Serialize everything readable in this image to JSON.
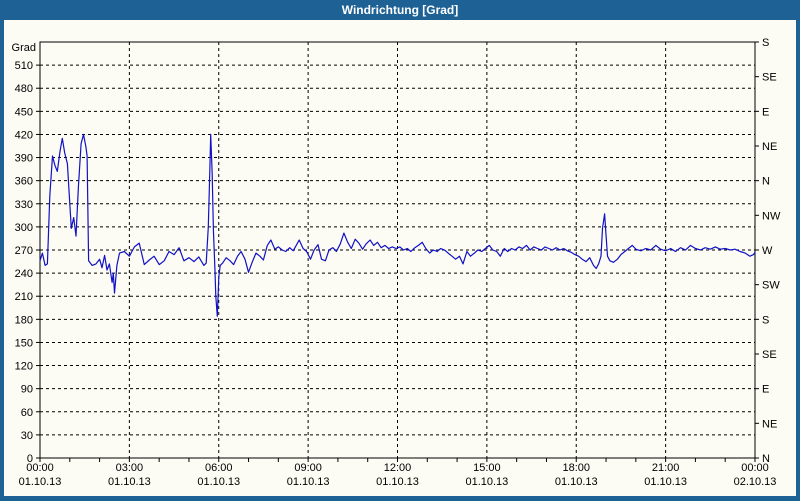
{
  "window": {
    "title": "Windrichtung [Grad]"
  },
  "colors": {
    "frame": "#1E6295",
    "titlebar_text": "#FFFFFF",
    "panel_bg": "#FCFCF4",
    "axis": "#000000",
    "line": "#1111C6"
  },
  "chart_data": {
    "type": "line",
    "title": "Windrichtung [Grad]",
    "ylabel": "Grad",
    "ylim": [
      0,
      540
    ],
    "xlim_hours": [
      0,
      24
    ],
    "grid": {
      "style": "dashed",
      "y_step": 30,
      "x_step_hours": 3
    },
    "y_left_ticks": [
      0,
      30,
      60,
      90,
      120,
      150,
      180,
      210,
      240,
      270,
      300,
      330,
      360,
      390,
      420,
      450,
      480,
      510
    ],
    "y_right_ticks": [
      {
        "value": 540,
        "label": "S"
      },
      {
        "value": 495,
        "label": "SE"
      },
      {
        "value": 450,
        "label": "E"
      },
      {
        "value": 405,
        "label": "NE"
      },
      {
        "value": 360,
        "label": "N"
      },
      {
        "value": 315,
        "label": "NW"
      },
      {
        "value": 270,
        "label": "W"
      },
      {
        "value": 225,
        "label": "SW"
      },
      {
        "value": 180,
        "label": "S"
      },
      {
        "value": 135,
        "label": "SE"
      },
      {
        "value": 90,
        "label": "E"
      },
      {
        "value": 45,
        "label": "NE"
      },
      {
        "value": 0,
        "label": "N"
      }
    ],
    "x_major_ticks": [
      {
        "hour": 0,
        "time": "00:00",
        "date": "01.10.13"
      },
      {
        "hour": 3,
        "time": "03:00",
        "date": "01.10.13"
      },
      {
        "hour": 6,
        "time": "06:00",
        "date": "01.10.13"
      },
      {
        "hour": 9,
        "time": "09:00",
        "date": "01.10.13"
      },
      {
        "hour": 12,
        "time": "12:00",
        "date": "01.10.13"
      },
      {
        "hour": 15,
        "time": "15:00",
        "date": "01.10.13"
      },
      {
        "hour": 18,
        "time": "18:00",
        "date": "01.10.13"
      },
      {
        "hour": 21,
        "time": "21:00",
        "date": "01.10.13"
      },
      {
        "hour": 24,
        "time": "00:00",
        "date": "02.10.13"
      }
    ],
    "x_minor_step_hours": 1,
    "series": [
      {
        "name": "Windrichtung",
        "unit": "Grad",
        "color": "#1111C6",
        "points": [
          [
            0,
            256
          ],
          [
            0.08,
            266
          ],
          [
            0.17,
            250
          ],
          [
            0.25,
            252
          ],
          [
            0.33,
            340
          ],
          [
            0.42,
            392
          ],
          [
            0.5,
            380
          ],
          [
            0.58,
            372
          ],
          [
            0.67,
            398
          ],
          [
            0.75,
            415
          ],
          [
            0.83,
            396
          ],
          [
            0.92,
            382
          ],
          [
            1,
            330
          ],
          [
            1.05,
            298
          ],
          [
            1.13,
            312
          ],
          [
            1.21,
            288
          ],
          [
            1.29,
            352
          ],
          [
            1.38,
            408
          ],
          [
            1.46,
            420
          ],
          [
            1.54,
            404
          ],
          [
            1.58,
            392
          ],
          [
            1.63,
            256
          ],
          [
            1.75,
            250
          ],
          [
            1.88,
            252
          ],
          [
            2,
            258
          ],
          [
            2.08,
            247
          ],
          [
            2.17,
            263
          ],
          [
            2.25,
            244
          ],
          [
            2.33,
            252
          ],
          [
            2.42,
            228
          ],
          [
            2.46,
            240
          ],
          [
            2.5,
            214
          ],
          [
            2.58,
            250
          ],
          [
            2.67,
            266
          ],
          [
            2.83,
            268
          ],
          [
            3,
            262
          ],
          [
            3.17,
            274
          ],
          [
            3.33,
            279
          ],
          [
            3.5,
            251
          ],
          [
            3.67,
            257
          ],
          [
            3.83,
            262
          ],
          [
            4,
            251
          ],
          [
            4.17,
            256
          ],
          [
            4.33,
            268
          ],
          [
            4.5,
            264
          ],
          [
            4.67,
            273
          ],
          [
            4.83,
            256
          ],
          [
            5,
            260
          ],
          [
            5.17,
            255
          ],
          [
            5.33,
            261
          ],
          [
            5.5,
            250
          ],
          [
            5.58,
            253
          ],
          [
            5.65,
            300
          ],
          [
            5.7,
            372
          ],
          [
            5.73,
            420
          ],
          [
            5.78,
            368
          ],
          [
            5.82,
            296
          ],
          [
            5.87,
            246
          ],
          [
            5.9,
            210
          ],
          [
            5.95,
            184
          ],
          [
            6,
            235
          ],
          [
            6.05,
            250
          ],
          [
            6.13,
            253
          ],
          [
            6.25,
            260
          ],
          [
            6.38,
            256
          ],
          [
            6.5,
            251
          ],
          [
            6.63,
            262
          ],
          [
            6.75,
            268
          ],
          [
            6.88,
            258
          ],
          [
            7,
            241
          ],
          [
            7.13,
            255
          ],
          [
            7.25,
            266
          ],
          [
            7.38,
            262
          ],
          [
            7.5,
            257
          ],
          [
            7.63,
            276
          ],
          [
            7.75,
            283
          ],
          [
            7.88,
            271
          ],
          [
            8,
            274
          ],
          [
            8.13,
            270
          ],
          [
            8.25,
            268
          ],
          [
            8.38,
            273
          ],
          [
            8.5,
            269
          ],
          [
            8.63,
            278
          ],
          [
            8.7,
            283
          ],
          [
            8.83,
            272
          ],
          [
            8.95,
            268
          ],
          [
            9.08,
            258
          ],
          [
            9.2,
            270
          ],
          [
            9.33,
            277
          ],
          [
            9.45,
            258
          ],
          [
            9.58,
            256
          ],
          [
            9.7,
            270
          ],
          [
            9.83,
            273
          ],
          [
            9.95,
            268
          ],
          [
            10.08,
            278
          ],
          [
            10.2,
            292
          ],
          [
            10.33,
            280
          ],
          [
            10.45,
            272
          ],
          [
            10.58,
            284
          ],
          [
            10.7,
            279
          ],
          [
            10.83,
            271
          ],
          [
            10.95,
            278
          ],
          [
            11.08,
            283
          ],
          [
            11.2,
            276
          ],
          [
            11.33,
            280
          ],
          [
            11.45,
            273
          ],
          [
            11.58,
            276
          ],
          [
            11.7,
            272
          ],
          [
            11.83,
            274
          ],
          [
            11.95,
            272
          ],
          [
            12.08,
            274
          ],
          [
            12.2,
            270
          ],
          [
            12.33,
            272
          ],
          [
            12.45,
            268
          ],
          [
            12.58,
            273
          ],
          [
            12.7,
            276
          ],
          [
            12.83,
            280
          ],
          [
            12.95,
            272
          ],
          [
            13.08,
            266
          ],
          [
            13.2,
            270
          ],
          [
            13.33,
            268
          ],
          [
            13.45,
            272
          ],
          [
            13.58,
            270
          ],
          [
            13.7,
            266
          ],
          [
            13.83,
            262
          ],
          [
            13.95,
            258
          ],
          [
            14.08,
            262
          ],
          [
            14.2,
            252
          ],
          [
            14.33,
            268
          ],
          [
            14.45,
            262
          ],
          [
            14.58,
            266
          ],
          [
            14.7,
            270
          ],
          [
            14.83,
            268
          ],
          [
            14.95,
            272
          ],
          [
            15.08,
            276
          ],
          [
            15.2,
            270
          ],
          [
            15.33,
            268
          ],
          [
            15.45,
            262
          ],
          [
            15.58,
            272
          ],
          [
            15.7,
            268
          ],
          [
            15.83,
            272
          ],
          [
            15.95,
            270
          ],
          [
            16.08,
            274
          ],
          [
            16.2,
            272
          ],
          [
            16.33,
            276
          ],
          [
            16.45,
            270
          ],
          [
            16.58,
            274
          ],
          [
            16.7,
            272
          ],
          [
            16.83,
            270
          ],
          [
            16.95,
            274
          ],
          [
            17.08,
            272
          ],
          [
            17.2,
            270
          ],
          [
            17.33,
            273
          ],
          [
            17.45,
            270
          ],
          [
            17.58,
            272
          ],
          [
            17.7,
            269
          ],
          [
            17.83,
            267
          ],
          [
            17.95,
            264
          ],
          [
            18.08,
            262
          ],
          [
            18.2,
            258
          ],
          [
            18.33,
            255
          ],
          [
            18.45,
            260
          ],
          [
            18.58,
            250
          ],
          [
            18.67,
            246
          ],
          [
            18.75,
            252
          ],
          [
            18.83,
            262
          ],
          [
            18.88,
            298
          ],
          [
            18.95,
            317
          ],
          [
            19,
            290
          ],
          [
            19.05,
            262
          ],
          [
            19.13,
            256
          ],
          [
            19.25,
            254
          ],
          [
            19.38,
            258
          ],
          [
            19.5,
            264
          ],
          [
            19.63,
            268
          ],
          [
            19.75,
            272
          ],
          [
            19.88,
            276
          ],
          [
            20,
            271
          ],
          [
            20.17,
            269
          ],
          [
            20.33,
            272
          ],
          [
            20.5,
            270
          ],
          [
            20.67,
            276
          ],
          [
            20.83,
            271
          ],
          [
            21,
            269
          ],
          [
            21.17,
            272
          ],
          [
            21.33,
            268
          ],
          [
            21.5,
            273
          ],
          [
            21.67,
            270
          ],
          [
            21.83,
            276
          ],
          [
            22,
            272
          ],
          [
            22.17,
            270
          ],
          [
            22.33,
            273
          ],
          [
            22.5,
            271
          ],
          [
            22.67,
            274
          ],
          [
            22.83,
            271
          ],
          [
            23,
            272
          ],
          [
            23.17,
            270
          ],
          [
            23.33,
            271
          ],
          [
            23.5,
            268
          ],
          [
            23.67,
            266
          ],
          [
            23.83,
            262
          ],
          [
            23.95,
            264
          ],
          [
            24,
            267
          ]
        ]
      }
    ]
  }
}
